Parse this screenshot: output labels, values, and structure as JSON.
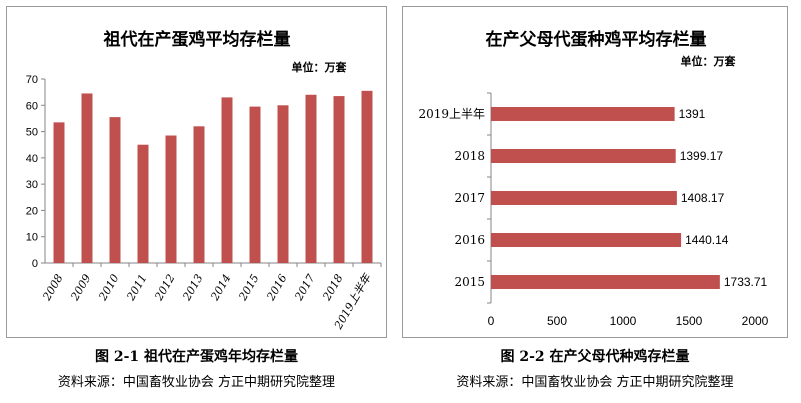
{
  "chart_data": [
    {
      "type": "bar",
      "title": "祖代在产蛋鸡平均存栏量",
      "unit_label": "单位：万套",
      "categories": [
        "2008",
        "2009",
        "2010",
        "2011",
        "2012",
        "2013",
        "2014",
        "2015",
        "2016",
        "2017",
        "2018",
        "2019上半年"
      ],
      "values": [
        53.5,
        64.5,
        55.5,
        45,
        48.5,
        52,
        63,
        59.5,
        60,
        64,
        63.5,
        65.5
      ],
      "ylim": [
        0,
        70
      ],
      "yticks": [
        "0",
        "10",
        "20",
        "30",
        "40",
        "50",
        "60",
        "70"
      ],
      "grid": false,
      "color": "#C0504D"
    },
    {
      "type": "bar",
      "orientation": "horizontal",
      "title": "在产父母代蛋种鸡平均存栏量",
      "unit_label": "单位：万套",
      "categories": [
        "2019上半年",
        "2018",
        "2017",
        "2016",
        "2015"
      ],
      "values": [
        1391,
        1399.17,
        1408.17,
        1440.14,
        1733.71
      ],
      "value_labels": [
        "1391",
        "1399.17",
        "1408.17",
        "1440.14",
        "1733.71"
      ],
      "xlim": [
        0,
        2000
      ],
      "xticks": [
        "0",
        "500",
        "1000",
        "1500",
        "2000"
      ],
      "grid": false,
      "color": "#C0504D"
    }
  ],
  "captions": {
    "left": "图 2-1  祖代在产蛋鸡年均存栏量",
    "right": "图 2-2    在产父母代种鸡存栏量"
  },
  "sources": {
    "left": "资料来源：中国畜牧业协会   方正中期研究院整理",
    "right": "资料来源：中国畜牧业协会   方正中期研究院整理"
  }
}
